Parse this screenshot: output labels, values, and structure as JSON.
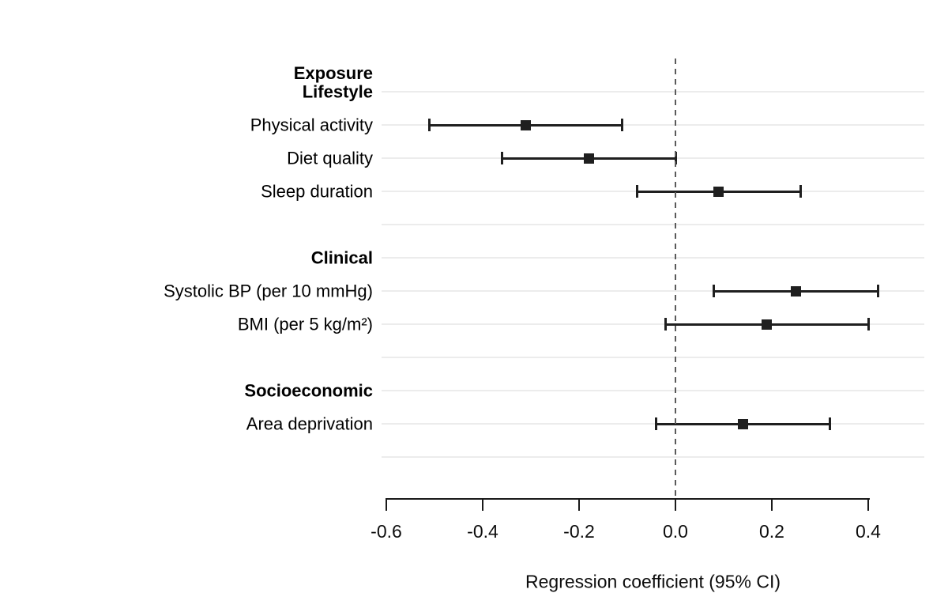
{
  "chart_data": {
    "type": "forest",
    "title": "",
    "xlabel": "Regression coefficient (95% CI)",
    "y_axis_header": "Exposure",
    "grid": "horizontal gridlines on",
    "legend_position": "none",
    "reference_line": 0.0,
    "xlim": [
      -0.62,
      0.515
    ],
    "x_ticks": [
      {
        "value": -0.6,
        "label": "-0.6"
      },
      {
        "value": -0.4,
        "label": "-0.4"
      },
      {
        "value": -0.2,
        "label": "-0.2"
      },
      {
        "value": 0.0,
        "label": "0.0"
      },
      {
        "value": 0.2,
        "label": "0.2"
      },
      {
        "value": 0.4,
        "label": "0.4"
      }
    ],
    "rows": [
      {
        "type": "group",
        "label": "Lifestyle"
      },
      {
        "type": "item",
        "label": "Physical activity",
        "estimate": -0.31,
        "ci_low": -0.51,
        "ci_high": -0.11
      },
      {
        "type": "item",
        "label": "Diet quality",
        "estimate": -0.18,
        "ci_low": -0.36,
        "ci_high": 0.0
      },
      {
        "type": "item",
        "label": "Sleep duration",
        "estimate": 0.09,
        "ci_low": -0.08,
        "ci_high": 0.26
      },
      {
        "type": "spacer",
        "label": ""
      },
      {
        "type": "group",
        "label": "Clinical"
      },
      {
        "type": "item",
        "label": "Systolic BP (per 10 mmHg)",
        "estimate": 0.25,
        "ci_low": 0.08,
        "ci_high": 0.42
      },
      {
        "type": "item",
        "label": "BMI (per 5 kg/m²)",
        "estimate": 0.19,
        "ci_low": -0.02,
        "ci_high": 0.4
      },
      {
        "type": "spacer",
        "label": ""
      },
      {
        "type": "group",
        "label": "Socioeconomic"
      },
      {
        "type": "item",
        "label": "Area deprivation",
        "estimate": 0.14,
        "ci_low": -0.04,
        "ci_high": 0.32
      },
      {
        "type": "spacer",
        "label": ""
      }
    ],
    "colors": {
      "marker": "#1f1f1f",
      "gridline": "#ececec",
      "reference_line": "#5a5a5a",
      "axis": "#1a1a1a",
      "text": "#000000",
      "background": "#ffffff"
    }
  }
}
